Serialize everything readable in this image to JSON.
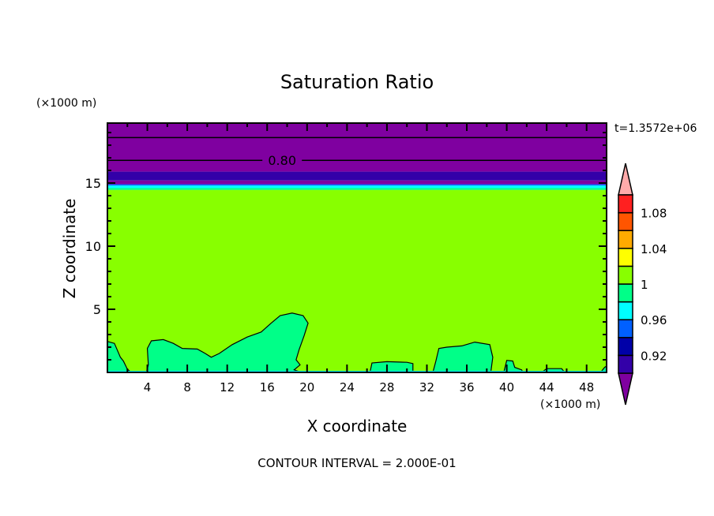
{
  "chart_data": {
    "type": "heatmap",
    "subtype": "filled-contour",
    "title": "Saturation Ratio",
    "xlabel": "X coordinate",
    "ylabel": "Z coordinate",
    "x_unit": "(×1000 m)",
    "y_unit": "(×1000 m)",
    "time_label": "t=1.3572e+06",
    "footer": "CONTOUR INTERVAL = 2.000E-01",
    "xlim": [
      0,
      50
    ],
    "ylim": [
      0,
      19.75
    ],
    "x_ticks": [
      4,
      8,
      12,
      16,
      20,
      24,
      28,
      32,
      36,
      40,
      44,
      48
    ],
    "y_ticks": [
      5,
      10,
      15
    ],
    "colorbar": {
      "levels": [
        0.9,
        0.92,
        0.94,
        0.96,
        0.98,
        1.0,
        1.02,
        1.04,
        1.06,
        1.08,
        1.1
      ],
      "colors": [
        "#3300a8",
        "#0000a8",
        "#0060ff",
        "#00ffff",
        "#00ff88",
        "#88ff00",
        "#ffff00",
        "#ffaa00",
        "#ff5500",
        "#ff2020"
      ],
      "under_color": "#7f00a0",
      "over_color": "#ffaaaa",
      "tick_labels": [
        "1.08",
        "1.04",
        "1",
        "0.96",
        "0.92"
      ],
      "tick_values": [
        1.08,
        1.04,
        1.0,
        0.96,
        0.92
      ]
    },
    "horizontal_bands": [
      {
        "z_bottom": 15.9,
        "z_top": 19.75,
        "color": "#7f00a0"
      },
      {
        "z_bottom": 15.2,
        "z_top": 15.9,
        "color": "#3300a8"
      },
      {
        "z_bottom": 14.9,
        "z_top": 15.2,
        "color": "#7f00a0"
      },
      {
        "z_bottom": 14.8,
        "z_top": 14.9,
        "color": "#0060ff"
      },
      {
        "z_bottom": 14.6,
        "z_top": 14.8,
        "color": "#00ffff"
      },
      {
        "z_bottom": 14.45,
        "z_top": 14.6,
        "color": "#00ff88"
      },
      {
        "z_bottom": 0,
        "z_top": 14.45,
        "color": "#88ff00"
      }
    ],
    "contour_lines": [
      {
        "z": 18.6,
        "label": ""
      },
      {
        "z": 16.8,
        "label": "0.80",
        "label_x": 17.5
      }
    ],
    "low_regions_color": "#00ff88",
    "low_regions": [
      [
        [
          0,
          0
        ],
        [
          0,
          2.45
        ],
        [
          0.7,
          2.3
        ],
        [
          1.3,
          1.2
        ],
        [
          1.6,
          0.9
        ],
        [
          2.0,
          0.25
        ],
        [
          2.4,
          0
        ]
      ],
      [
        [
          3.9,
          0
        ],
        [
          4.1,
          0.6
        ],
        [
          4.0,
          1.9
        ],
        [
          4.4,
          2.5
        ],
        [
          5.6,
          2.6
        ],
        [
          6.6,
          2.3
        ],
        [
          7.5,
          1.9
        ],
        [
          9.0,
          1.85
        ],
        [
          9.8,
          1.5
        ],
        [
          10.4,
          1.2
        ],
        [
          11.2,
          1.5
        ],
        [
          12.5,
          2.2
        ],
        [
          14.0,
          2.8
        ],
        [
          15.4,
          3.2
        ],
        [
          16.4,
          3.9
        ],
        [
          17.3,
          4.5
        ],
        [
          18.5,
          4.7
        ],
        [
          19.6,
          4.5
        ],
        [
          20.1,
          3.9
        ],
        [
          19.7,
          2.9
        ],
        [
          19.2,
          1.8
        ],
        [
          18.9,
          1.0
        ],
        [
          19.3,
          0.6
        ],
        [
          18.7,
          0.2
        ],
        [
          19.5,
          0
        ]
      ],
      [
        [
          26.3,
          0
        ],
        [
          26.5,
          0.75
        ],
        [
          28.0,
          0.85
        ],
        [
          30.0,
          0.8
        ],
        [
          30.6,
          0.7
        ],
        [
          30.6,
          0
        ]
      ],
      [
        [
          32.6,
          0
        ],
        [
          32.9,
          0.9
        ],
        [
          33.2,
          1.9
        ],
        [
          34.0,
          2.0
        ],
        [
          35.5,
          2.1
        ],
        [
          36.8,
          2.4
        ],
        [
          38.3,
          2.2
        ],
        [
          38.6,
          1.2
        ],
        [
          38.4,
          0
        ]
      ],
      [
        [
          39.7,
          0
        ],
        [
          40.0,
          0.95
        ],
        [
          40.6,
          0.9
        ],
        [
          40.8,
          0.4
        ],
        [
          41.5,
          0.2
        ],
        [
          41.6,
          0
        ]
      ],
      [
        [
          43.5,
          0
        ],
        [
          44.0,
          0.3
        ],
        [
          45.5,
          0.3
        ],
        [
          45.8,
          0
        ]
      ],
      [
        [
          49.4,
          0
        ],
        [
          49.8,
          0.4
        ],
        [
          50,
          0.5
        ],
        [
          50,
          0
        ]
      ]
    ]
  }
}
